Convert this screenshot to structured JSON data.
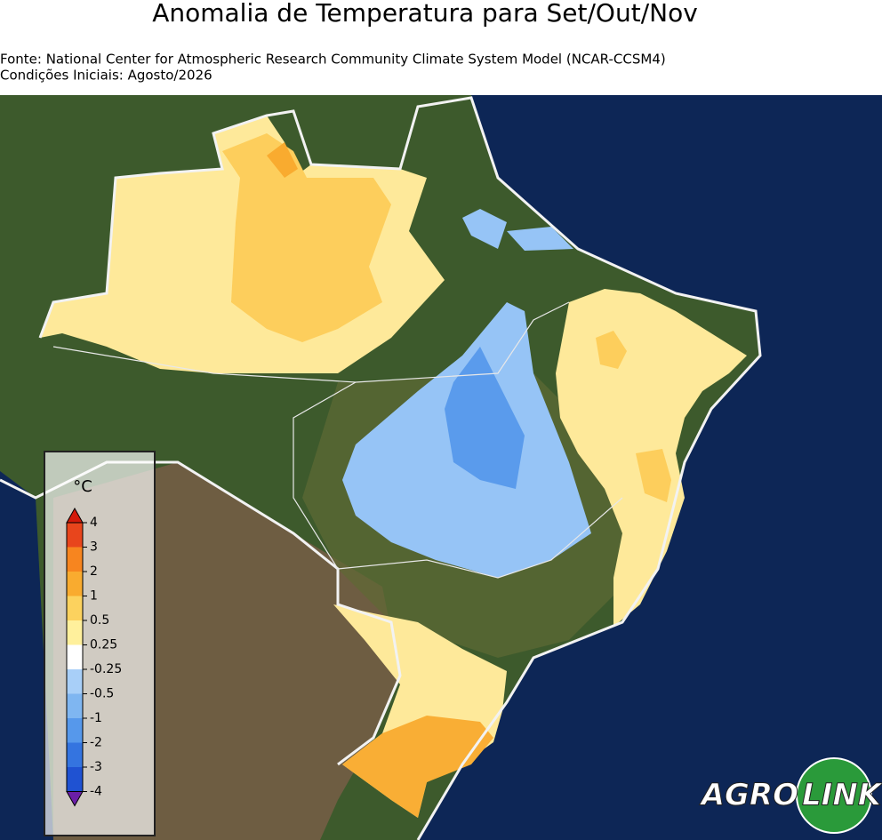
{
  "title": "Anomalia de Temperatura para Set/Out/Nov",
  "source": "Fonte: National Center for Atmospheric Research Community Climate System Model (NCAR-CCSM4)",
  "initial_conditions": "Condições Iniciais: Agosto/2026",
  "legend": {
    "unit": "°C",
    "ticks": [
      4,
      3,
      2,
      1,
      0.5,
      0.25,
      -0.25,
      -0.5,
      -1,
      -2,
      -3,
      -4
    ],
    "colors": [
      "#e8451c",
      "#f7851f",
      "#f9ab2f",
      "#fcd25e",
      "#fff09c",
      "#ffffff",
      "#a8cff8",
      "#7fb6f1",
      "#5698eb",
      "#3474e0",
      "#1f52d2"
    ],
    "extend_colors": [
      "#d41a0a",
      "#6b1fa8"
    ]
  },
  "logo": {
    "left": "AGRO",
    "right": "LINK"
  }
}
